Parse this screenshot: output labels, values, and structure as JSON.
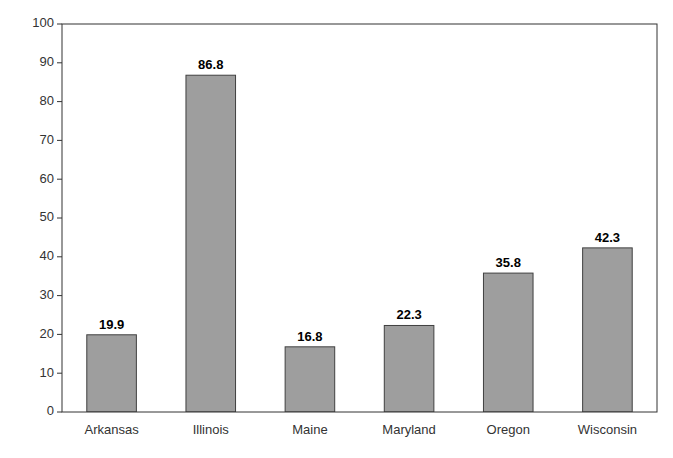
{
  "chart_data": {
    "type": "bar",
    "categories": [
      "Arkansas",
      "Illinois",
      "Maine",
      "Maryland",
      "Oregon",
      "Wisconsin"
    ],
    "values": [
      19.9,
      86.8,
      16.8,
      22.3,
      35.8,
      42.3
    ],
    "color": "#9E9E9E",
    "ylim": [
      0,
      100
    ],
    "yticks": [
      0,
      10,
      20,
      30,
      40,
      50,
      60,
      70,
      80,
      90,
      100
    ],
    "grid": false,
    "data_labels": true
  }
}
